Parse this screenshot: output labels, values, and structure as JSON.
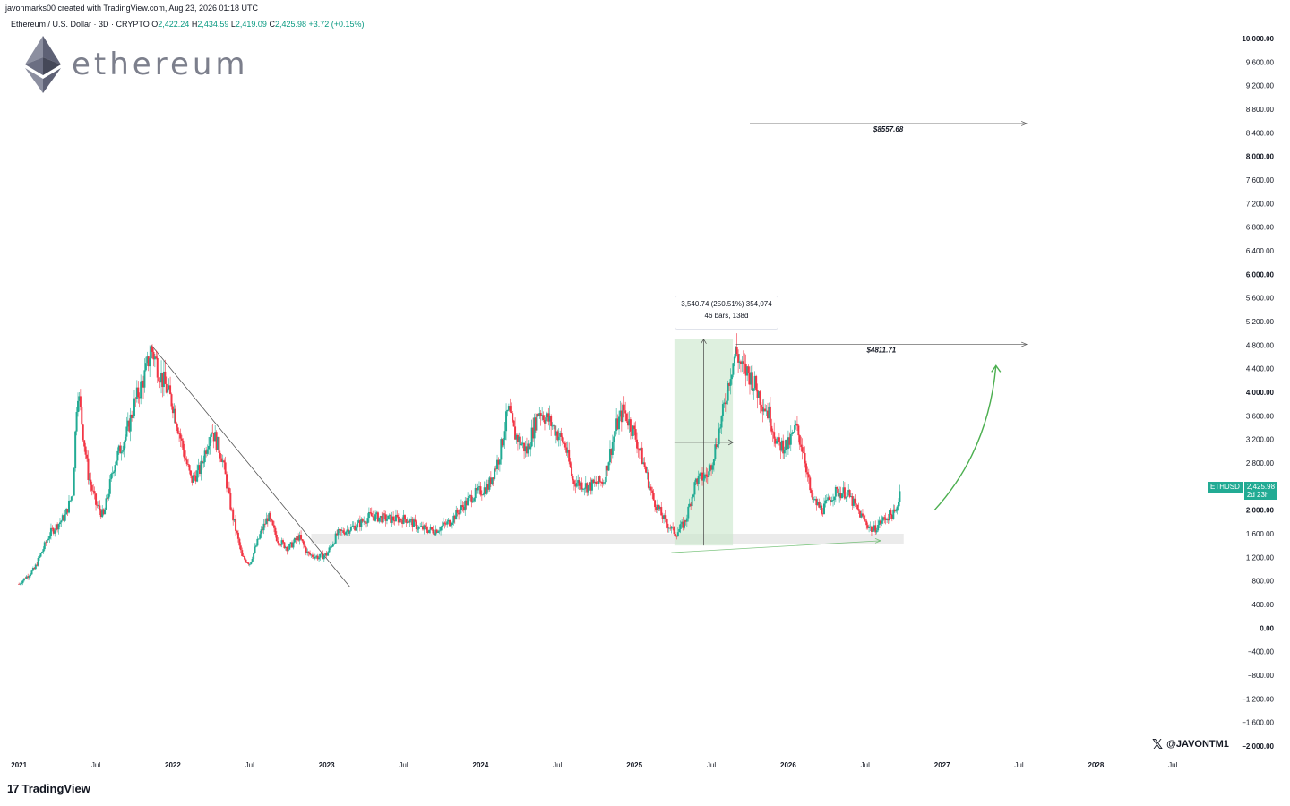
{
  "header": {
    "created_by": "javonmarks00 created with TradingView.com, Aug 23, 2026 01:18 UTC",
    "symbol_line": "Ethereum / U.S. Dollar · 3D · CRYPTO",
    "o_label": "O",
    "o_value": "2,422.24",
    "h_label": "H",
    "h_value": "2,434.59",
    "l_label": "L",
    "l_value": "2,419.09",
    "c_label": "C",
    "c_value": "2,425.98",
    "change": "+3.72 (+0.15%)"
  },
  "logo": {
    "word": "ethereum",
    "icon": "ethereum-diamond-icon"
  },
  "footer": {
    "brand": "TradingView",
    "brand_icon": "tv-logo-icon",
    "x_handle": "@JAVONTM1",
    "x_icon": "x-logo-icon"
  },
  "measure_tooltip": {
    "line1": "3,540.74 (250.51%) 354,074",
    "line2": "46 bars, 138d"
  },
  "price_badge": {
    "symbol": "ETHUSD",
    "price": "2,425.98",
    "countdown": "2d 23h"
  },
  "colors": {
    "up": "#22ab94",
    "down": "#f23645",
    "measure": "#c8e6c9",
    "support": "#e6e6e6",
    "arrow": "#4caf50"
  },
  "chart_data": {
    "type": "candlestick",
    "y_ticks": [
      "10,000.00",
      "9,600.00",
      "9,200.00",
      "8,800.00",
      "8,400.00",
      "8,000.00",
      "7,600.00",
      "7,200.00",
      "6,800.00",
      "6,400.00",
      "6,000.00",
      "5,600.00",
      "5,200.00",
      "4,800.00",
      "4,400.00",
      "4,000.00",
      "3,600.00",
      "3,200.00",
      "2,800.00",
      "2,000.00",
      "1,600.00",
      "1,200.00",
      "800.00",
      "400.00",
      "0.00",
      "−400.00",
      "−800.00",
      "−1,200.00",
      "−1,600.00",
      "−2,000.00"
    ],
    "y_tick_values": [
      10000,
      9600,
      9200,
      8800,
      8400,
      8000,
      7600,
      7200,
      6800,
      6400,
      6000,
      5600,
      5200,
      4800,
      4400,
      4000,
      3600,
      3200,
      2800,
      2000,
      1600,
      1200,
      800,
      400,
      0,
      -400,
      -800,
      -1200,
      -1600,
      -2000
    ],
    "y_bold": [
      10000,
      8000,
      6000,
      4000,
      2000,
      0,
      -2000
    ],
    "ylim": [
      -2000,
      10000
    ],
    "x_ticks": [
      "2021",
      "Jul",
      "2022",
      "Jul",
      "2023",
      "Jul",
      "2024",
      "Jul",
      "2025",
      "Jul",
      "2026",
      "Jul",
      "2027",
      "Jul",
      "2028",
      "Jul"
    ],
    "x_tick_years": [
      2021.0,
      2021.5,
      2022.0,
      2022.5,
      2023.0,
      2023.5,
      2024.0,
      2024.5,
      2025.0,
      2025.5,
      2026.0,
      2026.5,
      2027.0,
      2027.5,
      2028.0,
      2028.5
    ],
    "xlim": [
      2020.9,
      2028.9
    ],
    "price_path": [
      [
        2021.0,
        750
      ],
      [
        2021.1,
        1000
      ],
      [
        2021.2,
        1600
      ],
      [
        2021.3,
        1900
      ],
      [
        2021.35,
        2300
      ],
      [
        2021.38,
        4100
      ],
      [
        2021.45,
        2600
      ],
      [
        2021.5,
        2100
      ],
      [
        2021.55,
        1900
      ],
      [
        2021.62,
        2800
      ],
      [
        2021.7,
        3300
      ],
      [
        2021.75,
        3800
      ],
      [
        2021.82,
        4300
      ],
      [
        2021.86,
        4750
      ],
      [
        2021.92,
        4300
      ],
      [
        2022.0,
        3800
      ],
      [
        2022.07,
        3000
      ],
      [
        2022.12,
        2500
      ],
      [
        2022.18,
        2700
      ],
      [
        2022.25,
        3400
      ],
      [
        2022.32,
        2900
      ],
      [
        2022.38,
        2000
      ],
      [
        2022.45,
        1200
      ],
      [
        2022.5,
        1100
      ],
      [
        2022.57,
        1600
      ],
      [
        2022.62,
        1900
      ],
      [
        2022.68,
        1500
      ],
      [
        2022.75,
        1350
      ],
      [
        2022.82,
        1550
      ],
      [
        2022.88,
        1250
      ],
      [
        2022.95,
        1200
      ],
      [
        2023.0,
        1250
      ],
      [
        2023.07,
        1600
      ],
      [
        2023.12,
        1650
      ],
      [
        2023.2,
        1750
      ],
      [
        2023.28,
        1900
      ],
      [
        2023.4,
        1850
      ],
      [
        2023.52,
        1850
      ],
      [
        2023.6,
        1700
      ],
      [
        2023.7,
        1650
      ],
      [
        2023.8,
        1800
      ],
      [
        2023.88,
        2050
      ],
      [
        2023.95,
        2250
      ],
      [
        2024.05,
        2400
      ],
      [
        2024.12,
        2900
      ],
      [
        2024.18,
        3700
      ],
      [
        2024.22,
        3300
      ],
      [
        2024.3,
        3000
      ],
      [
        2024.38,
        3700
      ],
      [
        2024.45,
        3500
      ],
      [
        2024.55,
        3100
      ],
      [
        2024.6,
        2500
      ],
      [
        2024.7,
        2400
      ],
      [
        2024.8,
        2500
      ],
      [
        2024.88,
        3400
      ],
      [
        2024.93,
        3700
      ],
      [
        2025.0,
        3300
      ],
      [
        2025.07,
        2700
      ],
      [
        2025.12,
        2200
      ],
      [
        2025.2,
        1800
      ],
      [
        2025.27,
        1600
      ],
      [
        2025.33,
        1800
      ],
      [
        2025.4,
        2500
      ],
      [
        2025.48,
        2600
      ],
      [
        2025.52,
        3000
      ],
      [
        2025.58,
        3700
      ],
      [
        2025.62,
        4300
      ],
      [
        2025.66,
        4700
      ],
      [
        2025.7,
        4400
      ],
      [
        2025.75,
        4300
      ],
      [
        2025.82,
        3900
      ],
      [
        2025.88,
        3600
      ],
      [
        2025.93,
        3100
      ],
      [
        2026.0,
        3100
      ],
      [
        2026.05,
        3400
      ],
      [
        2026.1,
        3000
      ],
      [
        2026.15,
        2200
      ],
      [
        2026.22,
        2000
      ],
      [
        2026.3,
        2300
      ],
      [
        2026.38,
        2300
      ],
      [
        2026.45,
        2000
      ],
      [
        2026.5,
        1800
      ],
      [
        2026.55,
        1650
      ],
      [
        2026.6,
        1800
      ],
      [
        2026.65,
        1900
      ],
      [
        2026.7,
        1950
      ],
      [
        2026.73,
        2426
      ]
    ],
    "trendline": {
      "from": [
        2021.86,
        4800
      ],
      "to": [
        2023.15,
        700
      ]
    },
    "support_zone": {
      "x": [
        2022.9,
        2026.75
      ],
      "y": [
        1420,
        1600
      ]
    },
    "measure_box": {
      "x": [
        2025.26,
        2025.64
      ],
      "y": [
        1400,
        4900
      ]
    },
    "rising_line": {
      "from": [
        2025.24,
        1280
      ],
      "to": [
        2026.6,
        1480
      ]
    },
    "levels": [
      {
        "price": 8557.68,
        "label": "$8557.68",
        "from": 2025.75,
        "to": 2027.55
      },
      {
        "price": 4811.71,
        "label": "$4811.71",
        "from": 2025.66,
        "to": 2027.55
      }
    ],
    "curve_arrow": {
      "from": [
        2026.95,
        2000
      ],
      "ctrl": [
        2027.3,
        3000
      ],
      "to": [
        2027.35,
        4450
      ]
    }
  }
}
